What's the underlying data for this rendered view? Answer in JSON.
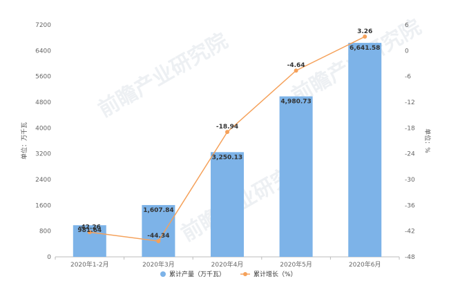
{
  "chart_data": {
    "type": "bar+line",
    "categories": [
      "2020年1-2月",
      "2020年3月",
      "2020年4月",
      "2020年5月",
      "2020年6月"
    ],
    "bar_series": {
      "name": "累计产量（万千瓦）",
      "values": [
        981.64,
        1607.84,
        3250.13,
        4980.73,
        6641.58
      ],
      "labels": [
        "981.64",
        "1,607.84",
        "3,250.13",
        "4,980.73",
        "6,641.58"
      ],
      "color": "#7db3e8"
    },
    "line_series": {
      "name": "累计增长（%）",
      "values": [
        -42.26,
        -44.34,
        -18.94,
        -4.64,
        3.26
      ],
      "labels": [
        "-42.26",
        "-44.34",
        "-18.94",
        "-4.64",
        "3.26"
      ],
      "color": "#f5a15a"
    },
    "left_axis": {
      "label": "单位：万千瓦",
      "ylim": [
        0,
        7200
      ],
      "ticks": [
        0,
        800,
        1600,
        2400,
        3200,
        4000,
        4800,
        5600,
        6400,
        7200
      ]
    },
    "right_axis": {
      "label": "单位：%",
      "ylim": [
        -48,
        6
      ],
      "ticks": [
        -48,
        -42,
        -36,
        -30,
        -24,
        -18,
        -12,
        -6,
        0,
        6
      ]
    },
    "grid": false,
    "legend_position": "bottom",
    "watermark": "前瞻产业研究院"
  }
}
